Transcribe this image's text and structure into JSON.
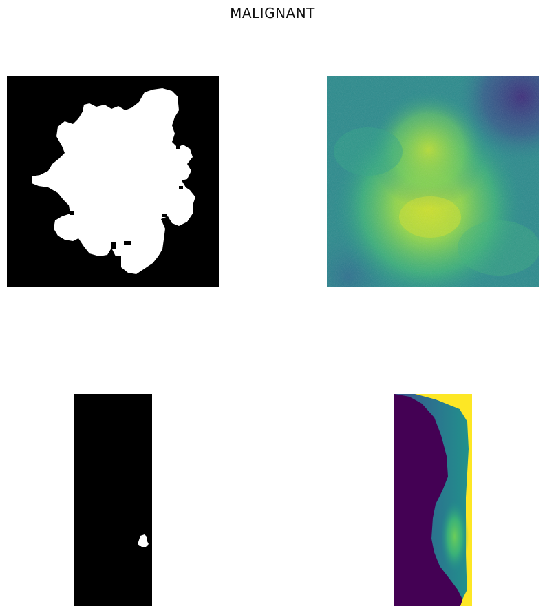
{
  "figure": {
    "title": "MALIGNANT"
  },
  "panels": [
    {
      "kind": "mask",
      "colormap": "gray"
    },
    {
      "kind": "ultrasound-crop",
      "colormap": "viridis"
    },
    {
      "kind": "mask",
      "colormap": "gray"
    },
    {
      "kind": "mammogram",
      "colormap": "viridis"
    }
  ],
  "colors": {
    "background": "#ffffff",
    "mask_bg": "#000000",
    "mask_fg": "#ffffff",
    "viridis_dark": "#440154",
    "viridis_teal": "#2a8a8c",
    "viridis_green": "#5ec962",
    "viridis_yellow": "#fde725"
  }
}
